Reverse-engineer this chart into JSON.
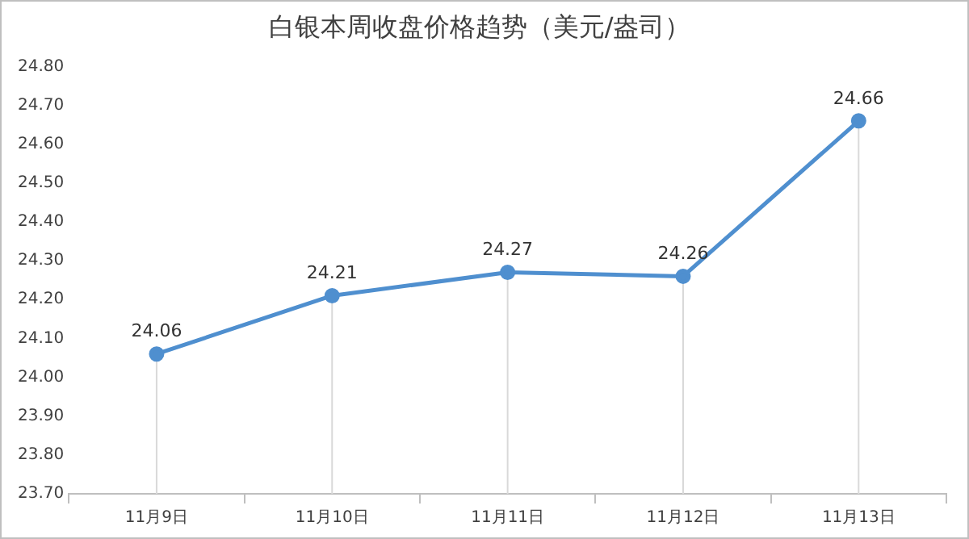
{
  "chart_data": {
    "type": "line",
    "title": "白银本周收盘价格趋势（美元/盎司）",
    "categories": [
      "11月9日",
      "11月10日",
      "11月11日",
      "11月12日",
      "11月13日"
    ],
    "series": [
      {
        "color": "#4f8fcf",
        "values": [
          24.06,
          24.21,
          24.27,
          24.26,
          24.66
        ]
      }
    ],
    "ylim": [
      23.7,
      24.8
    ],
    "yticks": [
      {
        "value": 23.7,
        "label": "23.70"
      },
      {
        "value": 23.8,
        "label": "23.80"
      },
      {
        "value": 23.9,
        "label": "23.90"
      },
      {
        "value": 24.0,
        "label": "24.00"
      },
      {
        "value": 24.1,
        "label": "24.10"
      },
      {
        "value": 24.2,
        "label": "24.20"
      },
      {
        "value": 24.3,
        "label": "24.30"
      },
      {
        "value": 24.4,
        "label": "24.40"
      },
      {
        "value": 24.5,
        "label": "24.50"
      },
      {
        "value": 24.6,
        "label": "24.60"
      },
      {
        "value": 24.7,
        "label": "24.70"
      },
      {
        "value": 24.8,
        "label": "24.80"
      }
    ],
    "grid": "x",
    "legend": false,
    "marker": "circle",
    "line_style": "solid",
    "data_labels": true
  }
}
